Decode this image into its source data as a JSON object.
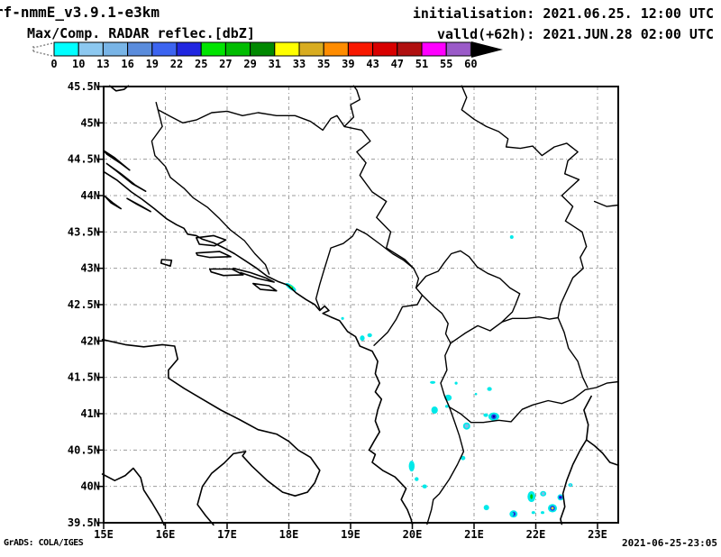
{
  "header": {
    "model_title": "rf-nmmE_v3.9.1-e3km",
    "product_title": "Max/Comp. RADAR reflec.[dbZ]",
    "init_label": "initialisation: 2021.06.25. 12:00 UTC",
    "valid_label": "valld(+62h): 2021.JUN.28 02:00 UTC"
  },
  "footer": {
    "left": "GrADS: COLA/IGES",
    "right": "2021-06-25-23:05"
  },
  "colorbar": {
    "levels": [
      0,
      10,
      13,
      16,
      19,
      22,
      25,
      27,
      29,
      31,
      33,
      35,
      39,
      43,
      47,
      51,
      55,
      60
    ],
    "colors": [
      "#00ffff",
      "#8cc8f0",
      "#78b4e6",
      "#5a8cdc",
      "#3c64f0",
      "#2026e0",
      "#00e400",
      "#00bc00",
      "#008800",
      "#ffff00",
      "#d8ac20",
      "#ff8c00",
      "#f81800",
      "#d80000",
      "#b01010",
      "#ff00ff",
      "#9a5ac8"
    ],
    "units": "dbZ"
  },
  "map": {
    "axis": {
      "x_ticks": [
        "15E",
        "16E",
        "17E",
        "18E",
        "19E",
        "20E",
        "21E",
        "22E",
        "23E"
      ],
      "x_lons": [
        15,
        16,
        17,
        18,
        19,
        20,
        21,
        22,
        23
      ],
      "y_ticks": [
        "45.5N",
        "45N",
        "44.5N",
        "44N",
        "43.5N",
        "43N",
        "42.5N",
        "42N",
        "41.5N",
        "41N",
        "40.5N",
        "40N",
        "39.5N"
      ],
      "y_lats": [
        45.5,
        45,
        44.5,
        44,
        43.5,
        43,
        42.5,
        42,
        41.5,
        41,
        40.5,
        40,
        39.5
      ]
    },
    "extent": {
      "lon_min": 15,
      "lon_max": 23.34,
      "lat_min": 39.5,
      "lat_max": 45.5
    },
    "palette": {
      "echo_cyan": "#00e9e9",
      "echo_lightblue": "#82bce8",
      "echo_blue": "#2a35e8",
      "echo_navy": "#000090",
      "echo_green": "#00cc00",
      "echo_yellow": "#ffff00"
    },
    "radar_cells": [
      {
        "lon": 18.03,
        "lat": 42.74,
        "rx": 7,
        "ry": 2.6,
        "rot": 35,
        "core": "gr-yl",
        "max_dbz": 32
      },
      {
        "lon": 18.87,
        "lat": 42.31,
        "rx": 1.6,
        "ry": 1.6,
        "rot": 0,
        "core": "none",
        "max_dbz": 5
      },
      {
        "lon": 19.19,
        "lat": 42.04,
        "rx": 2.6,
        "ry": 3,
        "rot": 0,
        "core": "none",
        "max_dbz": 8
      },
      {
        "lon": 19.31,
        "lat": 42.08,
        "rx": 2.6,
        "ry": 2.2,
        "rot": 0,
        "core": "none",
        "max_dbz": 8
      },
      {
        "lon": 21.61,
        "lat": 43.43,
        "rx": 2,
        "ry": 2,
        "rot": 0,
        "core": "none",
        "max_dbz": 5
      },
      {
        "lon": 20.33,
        "lat": 41.43,
        "rx": 3,
        "ry": 1.6,
        "rot": 0,
        "core": "none",
        "max_dbz": 5
      },
      {
        "lon": 20.71,
        "lat": 41.42,
        "rx": 1.6,
        "ry": 1.6,
        "rot": 0,
        "core": "none",
        "max_dbz": 5
      },
      {
        "lon": 21.25,
        "lat": 41.34,
        "rx": 2.6,
        "ry": 2.2,
        "rot": 0,
        "core": "none",
        "max_dbz": 5
      },
      {
        "lon": 21.03,
        "lat": 41.27,
        "rx": 1.3,
        "ry": 1.3,
        "rot": 0,
        "core": "none",
        "max_dbz": 5
      },
      {
        "lon": 20.58,
        "lat": 41.22,
        "rx": 4,
        "ry": 3.4,
        "rot": 0,
        "core": "none",
        "max_dbz": 8
      },
      {
        "lon": 20.36,
        "lat": 41.05,
        "rx": 3.6,
        "ry": 4,
        "rot": 0,
        "core": "none",
        "max_dbz": 8
      },
      {
        "lon": 20.56,
        "lat": 41.1,
        "rx": 2,
        "ry": 1.6,
        "rot": 0,
        "core": "none",
        "max_dbz": 5
      },
      {
        "lon": 21.32,
        "lat": 40.96,
        "rx": 6,
        "ry": 4.6,
        "rot": 0,
        "core": "bl",
        "max_dbz": 24
      },
      {
        "lon": 21.19,
        "lat": 40.98,
        "rx": 2.6,
        "ry": 2,
        "rot": 0,
        "core": "none",
        "max_dbz": 8
      },
      {
        "lon": 20.88,
        "lat": 40.83,
        "rx": 4,
        "ry": 4,
        "rot": 0,
        "core": "lb",
        "max_dbz": 14
      },
      {
        "lon": 20.82,
        "lat": 40.39,
        "rx": 2.6,
        "ry": 2.4,
        "rot": 0,
        "core": "none",
        "max_dbz": 5
      },
      {
        "lon": 19.99,
        "lat": 40.28,
        "rx": 3.2,
        "ry": 6,
        "rot": 0,
        "core": "none",
        "max_dbz": 8
      },
      {
        "lon": 20.07,
        "lat": 40.1,
        "rx": 2.2,
        "ry": 2.2,
        "rot": 0,
        "core": "none",
        "max_dbz": 5
      },
      {
        "lon": 20.2,
        "lat": 40.0,
        "rx": 2.6,
        "ry": 2.2,
        "rot": 0,
        "core": "none",
        "max_dbz": 5
      },
      {
        "lon": 21.2,
        "lat": 39.71,
        "rx": 3,
        "ry": 3,
        "rot": 0,
        "core": "none",
        "max_dbz": 8
      },
      {
        "lon": 21.64,
        "lat": 39.62,
        "rx": 4.4,
        "ry": 4,
        "rot": 0,
        "core": "bl",
        "max_dbz": 24
      },
      {
        "lon": 21.93,
        "lat": 39.86,
        "rx": 4.4,
        "ry": 6,
        "rot": 0,
        "core": "gr",
        "max_dbz": 28
      },
      {
        "lon": 22.12,
        "lat": 39.9,
        "rx": 3.4,
        "ry": 3,
        "rot": 0,
        "core": "lb",
        "max_dbz": 14
      },
      {
        "lon": 22.4,
        "lat": 39.85,
        "rx": 3.4,
        "ry": 3.4,
        "rot": 0,
        "core": "bl",
        "max_dbz": 24
      },
      {
        "lon": 22.27,
        "lat": 39.7,
        "rx": 5,
        "ry": 4.6,
        "rot": 0,
        "core": "bl-yl",
        "max_dbz": 33
      },
      {
        "lon": 21.61,
        "lat": 39.62,
        "rx": 2.4,
        "ry": 2,
        "rot": 0,
        "core": "none",
        "max_dbz": 5
      },
      {
        "lon": 21.96,
        "lat": 39.64,
        "rx": 2,
        "ry": 1.6,
        "rot": 0,
        "core": "none",
        "max_dbz": 5
      },
      {
        "lon": 22.11,
        "lat": 39.64,
        "rx": 2,
        "ry": 1.6,
        "rot": 0,
        "core": "none",
        "max_dbz": 5
      },
      {
        "lon": 22.56,
        "lat": 40.02,
        "rx": 2.4,
        "ry": 2,
        "rot": 0,
        "core": "lb",
        "max_dbz": 12
      }
    ]
  }
}
